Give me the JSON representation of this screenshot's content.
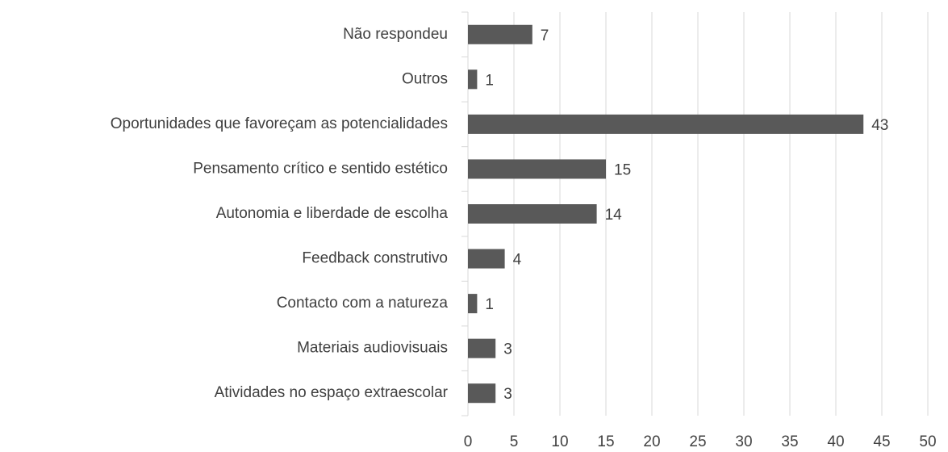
{
  "chart_data": {
    "type": "bar",
    "orientation": "horizontal",
    "categories": [
      "Não respondeu",
      "Outros",
      "Oportunidades que favoreçam as potencialidades",
      "Pensamento crítico e sentido estético",
      "Autonomia e liberdade de escolha",
      "Feedback construtivo",
      "Contacto com a natureza",
      "Materiais audiovisuais",
      "Atividades no espaço extraescolar"
    ],
    "values": [
      7,
      1,
      43,
      15,
      14,
      4,
      1,
      3,
      3
    ],
    "color": "#595959",
    "xlim": [
      0,
      50
    ],
    "xticks": [
      0,
      5,
      10,
      15,
      20,
      25,
      30,
      35,
      40,
      45,
      50
    ],
    "grid": true
  }
}
